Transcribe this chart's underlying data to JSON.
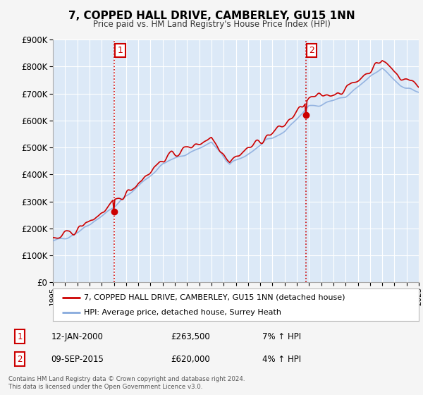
{
  "title": "7, COPPED HALL DRIVE, CAMBERLEY, GU15 1NN",
  "subtitle": "Price paid vs. HM Land Registry's House Price Index (HPI)",
  "footer": "Contains HM Land Registry data © Crown copyright and database right 2024.\nThis data is licensed under the Open Government Licence v3.0.",
  "legend_line1": "7, COPPED HALL DRIVE, CAMBERLEY, GU15 1NN (detached house)",
  "legend_line2": "HPI: Average price, detached house, Surrey Heath",
  "sale1_label": "1",
  "sale1_date": "12-JAN-2000",
  "sale1_price": "£263,500",
  "sale1_hpi": "7% ↑ HPI",
  "sale2_label": "2",
  "sale2_date": "09-SEP-2015",
  "sale2_price": "£620,000",
  "sale2_hpi": "4% ↑ HPI",
  "sale1_year": 2000.04,
  "sale1_value": 263500,
  "sale2_year": 2015.75,
  "sale2_value": 620000,
  "line_color_red": "#cc0000",
  "line_color_blue": "#88aadd",
  "plot_bg_color": "#dce9f7",
  "outer_bg_color": "#f5f5f5",
  "grid_color": "#ffffff",
  "vline_color": "#cc0000",
  "box_color": "#cc0000",
  "ylim": [
    0,
    900000
  ],
  "yticks": [
    0,
    100000,
    200000,
    300000,
    400000,
    500000,
    600000,
    700000,
    800000,
    900000
  ],
  "xstart": 1995,
  "xend": 2025
}
